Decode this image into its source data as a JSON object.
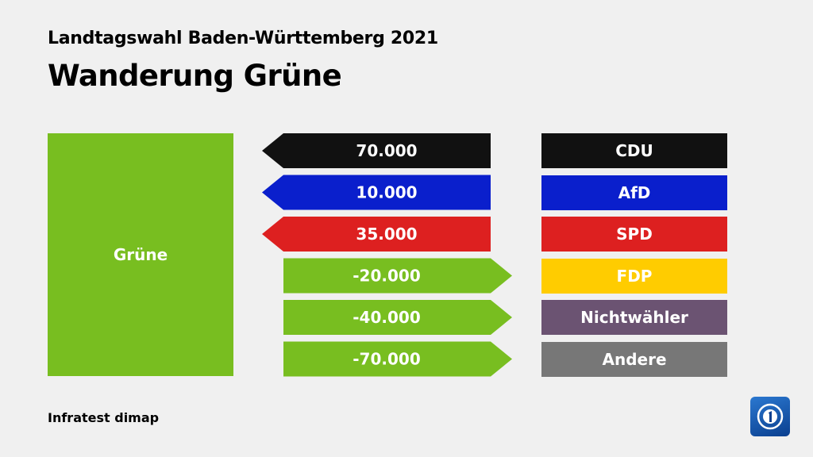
{
  "header": {
    "subtitle": "Landtagswahl Baden-Württemberg 2021",
    "title": "Wanderung Grüne"
  },
  "source": "Infratest dimap",
  "logo_icon": "tagesschau-logo-icon",
  "chart_data": {
    "type": "bar",
    "source_party": {
      "name": "Grüne",
      "color": "#78be20"
    },
    "rows": [
      {
        "party": "CDU",
        "value_label": "70.000",
        "value": 70000,
        "direction": "inflow",
        "color": "#111111"
      },
      {
        "party": "AfD",
        "value_label": "10.000",
        "value": 10000,
        "direction": "inflow",
        "color": "#0a1fcc"
      },
      {
        "party": "SPD",
        "value_label": "35.000",
        "value": 35000,
        "direction": "inflow",
        "color": "#dd2020"
      },
      {
        "party": "FDP",
        "value_label": "-20.000",
        "value": -20000,
        "direction": "outflow",
        "color": "#ffcc00"
      },
      {
        "party": "Nichtwähler",
        "value_label": "-40.000",
        "value": -40000,
        "direction": "outflow",
        "color": "#6b5372"
      },
      {
        "party": "Andere",
        "value_label": "-70.000",
        "value": -70000,
        "direction": "outflow",
        "color": "#777777"
      }
    ]
  }
}
